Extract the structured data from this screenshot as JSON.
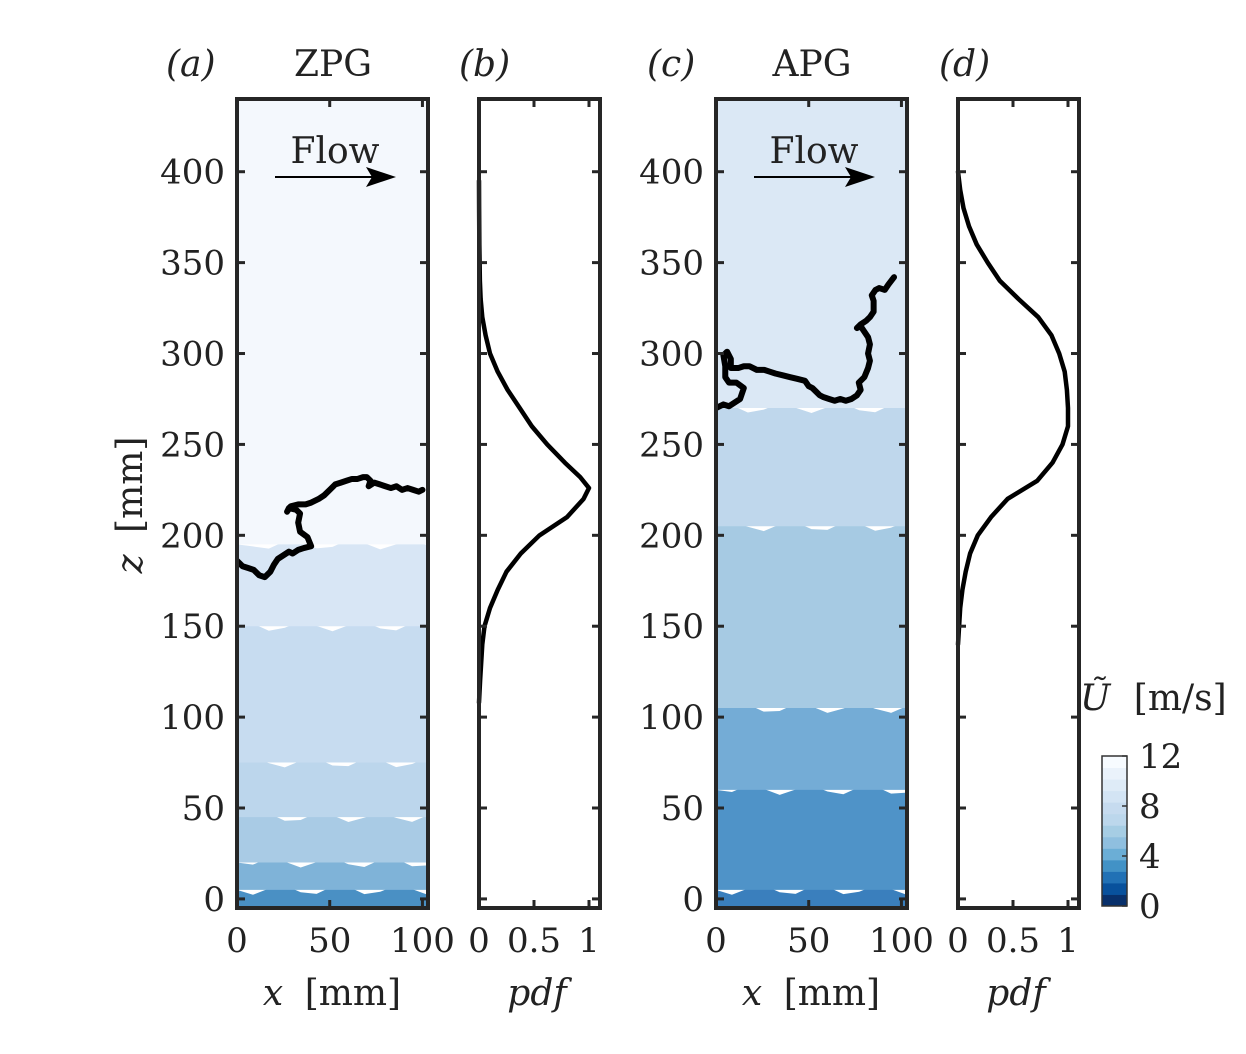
{
  "chart_data": {
    "type": "heatmap",
    "description_units": {
      "x": "mm",
      "z": "mm",
      "U": "m/s"
    },
    "ylabel_text": "[mm]",
    "ylabel_var": "z",
    "xlabel_text": "[mm]",
    "xlabel_var": "x",
    "pdf_label": "pdf",
    "flow_label": "Flow",
    "z_ticks": [
      0,
      50,
      100,
      150,
      200,
      250,
      300,
      350,
      400
    ],
    "x_ticks": [
      0,
      50,
      100
    ],
    "pdf_ticks": [
      0,
      0.5,
      1
    ],
    "pdf_tick_labels": [
      "0",
      "0.5",
      "1"
    ],
    "zlim": [
      -5,
      440
    ],
    "xlim": [
      0,
      103
    ],
    "pdflim": [
      0,
      1.1
    ],
    "colorbar": {
      "title_var": "Ũ",
      "title_unit": "[m/s]",
      "ticks": [
        0,
        4,
        8,
        12
      ],
      "range": [
        0,
        12
      ],
      "colors": [
        "#08306b",
        "#08519c",
        "#2171b5",
        "#4292c6",
        "#6baed6",
        "#8fbfdf",
        "#a6cde4",
        "#bcd7ec",
        "#c6dbef",
        "#d3e4f4",
        "#deebf7",
        "#eaf2fb",
        "#f7fbff"
      ]
    },
    "panels": [
      {
        "letter": "(a)",
        "title": "ZPG",
        "field_bands": [
          {
            "z0": -5,
            "z1": 5,
            "color": "#4a90c4"
          },
          {
            "z0": 5,
            "z1": 20,
            "color": "#7fb3d8"
          },
          {
            "z0": 20,
            "z1": 45,
            "color": "#a9cbe5"
          },
          {
            "z0": 45,
            "z1": 75,
            "color": "#bcd6ec"
          },
          {
            "z0": 75,
            "z1": 150,
            "color": "#c7dcf0"
          },
          {
            "z0": 150,
            "z1": 195,
            "color": "#d8e6f5"
          },
          {
            "z0": 195,
            "z1": 440,
            "color": "#f4f8fd"
          }
        ],
        "interface": [
          [
            0,
            186
          ],
          [
            3,
            183
          ],
          [
            6,
            182
          ],
          [
            9,
            181
          ],
          [
            12,
            178
          ],
          [
            15,
            177
          ],
          [
            18,
            180
          ],
          [
            20,
            184
          ],
          [
            22,
            187
          ],
          [
            25,
            189
          ],
          [
            28,
            191
          ],
          [
            30,
            190
          ],
          [
            33,
            192
          ],
          [
            36,
            193
          ],
          [
            40,
            194
          ],
          [
            38,
            199
          ],
          [
            34,
            202
          ],
          [
            33,
            207
          ],
          [
            34,
            212
          ],
          [
            32,
            214
          ],
          [
            28,
            215
          ],
          [
            27,
            213
          ],
          [
            29,
            216
          ],
          [
            33,
            217
          ],
          [
            37,
            217
          ],
          [
            40,
            218
          ],
          [
            44,
            220
          ],
          [
            47,
            222
          ],
          [
            50,
            225
          ],
          [
            53,
            228
          ],
          [
            56,
            229
          ],
          [
            59,
            230
          ],
          [
            62,
            231
          ],
          [
            65,
            231
          ],
          [
            68,
            232
          ],
          [
            70,
            232
          ],
          [
            72,
            230
          ],
          [
            71,
            227
          ],
          [
            74,
            229
          ],
          [
            77,
            228
          ],
          [
            80,
            227
          ],
          [
            83,
            226
          ],
          [
            86,
            227
          ],
          [
            89,
            225
          ],
          [
            92,
            226
          ],
          [
            95,
            225
          ],
          [
            98,
            224
          ],
          [
            100,
            225
          ]
        ],
        "pdf": {
          "z": [
            108,
            120,
            140,
            150,
            160,
            170,
            180,
            190,
            200,
            210,
            220,
            226,
            232,
            240,
            250,
            260,
            270,
            280,
            290,
            300,
            310,
            320,
            330,
            340,
            360,
            380,
            395
          ],
          "values": [
            0.0,
            0.01,
            0.03,
            0.05,
            0.1,
            0.17,
            0.25,
            0.38,
            0.55,
            0.8,
            0.95,
            1.0,
            0.92,
            0.78,
            0.62,
            0.48,
            0.37,
            0.26,
            0.17,
            0.1,
            0.06,
            0.03,
            0.015,
            0.008,
            0.003,
            0.001,
            0.0
          ]
        }
      },
      {
        "letter": "(c)",
        "title": "APG",
        "field_bands": [
          {
            "z0": -5,
            "z1": 5,
            "color": "#3a7fbd"
          },
          {
            "z0": 5,
            "z1": 60,
            "color": "#4f93c8"
          },
          {
            "z0": 60,
            "z1": 105,
            "color": "#74acd6"
          },
          {
            "z0": 105,
            "z1": 205,
            "color": "#a6cae3"
          },
          {
            "z0": 205,
            "z1": 270,
            "color": "#bfd7ec"
          },
          {
            "z0": 270,
            "z1": 440,
            "color": "#dbe8f5"
          }
        ],
        "interface": [
          [
            0,
            270
          ],
          [
            4,
            272
          ],
          [
            7,
            271
          ],
          [
            10,
            273
          ],
          [
            13,
            275
          ],
          [
            15,
            281
          ],
          [
            11,
            284
          ],
          [
            7,
            284
          ],
          [
            5,
            287
          ],
          [
            5,
            293
          ],
          [
            4,
            299
          ],
          [
            6,
            301
          ],
          [
            8,
            297
          ],
          [
            8,
            292
          ],
          [
            12,
            292
          ],
          [
            15,
            293
          ],
          [
            18,
            293
          ],
          [
            22,
            291
          ],
          [
            26,
            291
          ],
          [
            29,
            290
          ],
          [
            32,
            289
          ],
          [
            36,
            288
          ],
          [
            40,
            287
          ],
          [
            44,
            286
          ],
          [
            48,
            285
          ],
          [
            50,
            282
          ],
          [
            52,
            281
          ],
          [
            54,
            279
          ],
          [
            56,
            277
          ],
          [
            58,
            276
          ],
          [
            61,
            275
          ],
          [
            64,
            274
          ],
          [
            67,
            275
          ],
          [
            70,
            274
          ],
          [
            73,
            275
          ],
          [
            76,
            277
          ],
          [
            78,
            280
          ],
          [
            77,
            284
          ],
          [
            80,
            287
          ],
          [
            82,
            292
          ],
          [
            83,
            296
          ],
          [
            82,
            300
          ],
          [
            83,
            305
          ],
          [
            82,
            309
          ],
          [
            80,
            312
          ],
          [
            78,
            315
          ],
          [
            76,
            314
          ],
          [
            78,
            316
          ],
          [
            81,
            318
          ],
          [
            83,
            320
          ],
          [
            85,
            323
          ],
          [
            85,
            329
          ],
          [
            84,
            332
          ],
          [
            86,
            335
          ],
          [
            88,
            336
          ],
          [
            91,
            335
          ],
          [
            93,
            338
          ],
          [
            96,
            342
          ]
        ],
        "pdf": {
          "z": [
            140,
            150,
            160,
            170,
            180,
            190,
            200,
            210,
            220,
            230,
            240,
            250,
            260,
            270,
            280,
            290,
            300,
            310,
            320,
            330,
            340,
            350,
            360,
            370,
            380,
            390,
            400
          ],
          "values": [
            0.0,
            0.01,
            0.02,
            0.04,
            0.07,
            0.11,
            0.18,
            0.3,
            0.45,
            0.72,
            0.86,
            0.95,
            1.0,
            1.0,
            0.99,
            0.97,
            0.92,
            0.85,
            0.73,
            0.55,
            0.38,
            0.27,
            0.17,
            0.1,
            0.05,
            0.02,
            0.0
          ]
        }
      }
    ],
    "pdf_letters": [
      "(b)",
      "(d)"
    ]
  }
}
